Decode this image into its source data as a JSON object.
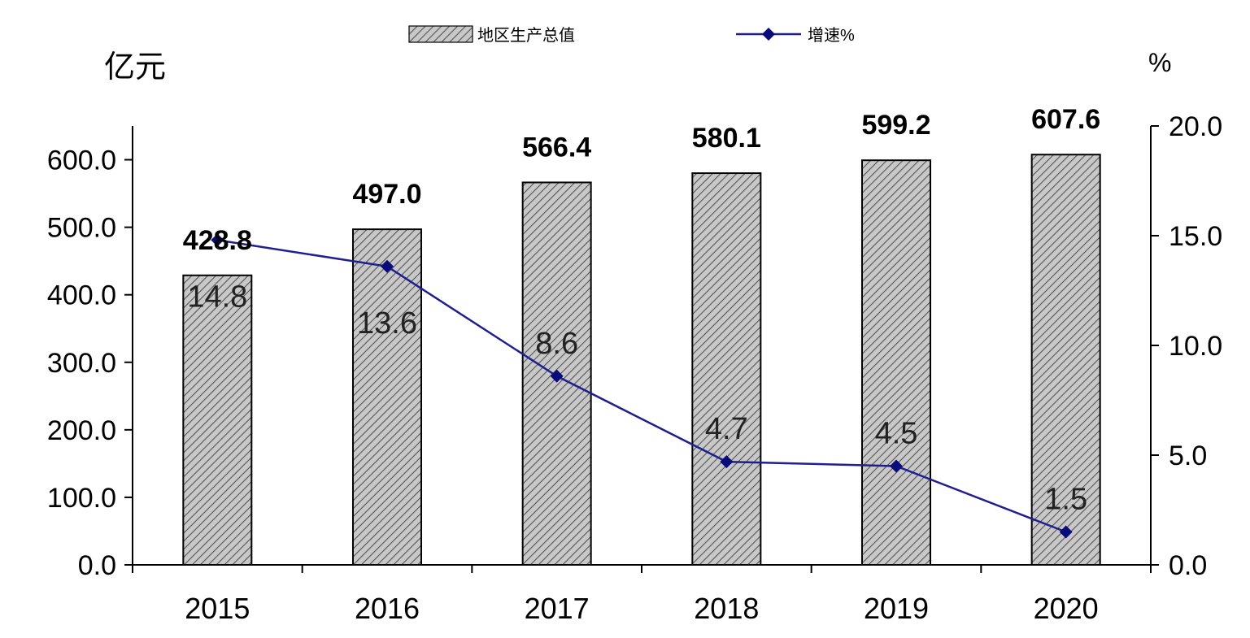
{
  "chart_data": {
    "type": "bar",
    "categories": [
      "2015",
      "2016",
      "2017",
      "2018",
      "2019",
      "2020"
    ],
    "series": [
      {
        "name": "地区生产总值",
        "type": "bar",
        "axis": "left",
        "values": [
          428.8,
          497.0,
          566.4,
          580.1,
          599.2,
          607.6
        ],
        "labels": [
          "428.8",
          "497.0",
          "566.4",
          "580.1",
          "599.2",
          "607.6"
        ]
      },
      {
        "name": "增速%",
        "type": "line",
        "axis": "right",
        "values": [
          14.8,
          13.6,
          8.6,
          4.7,
          4.5,
          1.5
        ],
        "labels": [
          "14.8",
          "13.6",
          "8.6",
          "4.7",
          "4.5",
          "1.5"
        ]
      }
    ],
    "y_left": {
      "unit": "亿元",
      "range": [
        0,
        650
      ],
      "ticks": [
        0,
        100,
        200,
        300,
        400,
        500,
        600
      ],
      "tick_labels": [
        "0.0",
        "100.0",
        "200.0",
        "300.0",
        "400.0",
        "500.0",
        "600.0"
      ]
    },
    "y_right": {
      "unit": "%",
      "range": [
        0,
        20
      ],
      "ticks": [
        0,
        5,
        10,
        15,
        20
      ],
      "tick_labels": [
        "0.0",
        "5.0",
        "10.0",
        "15.0",
        "20.0"
      ]
    },
    "legend_position": "top-center",
    "grid": false,
    "colors": {
      "bar_fill": "#c8c8c8",
      "bar_hatch": "#555555",
      "bar_outline": "#000000",
      "line": "#1f1f8f",
      "marker": "#0a0a7a",
      "axis": "#000000",
      "text": "#000000"
    }
  }
}
